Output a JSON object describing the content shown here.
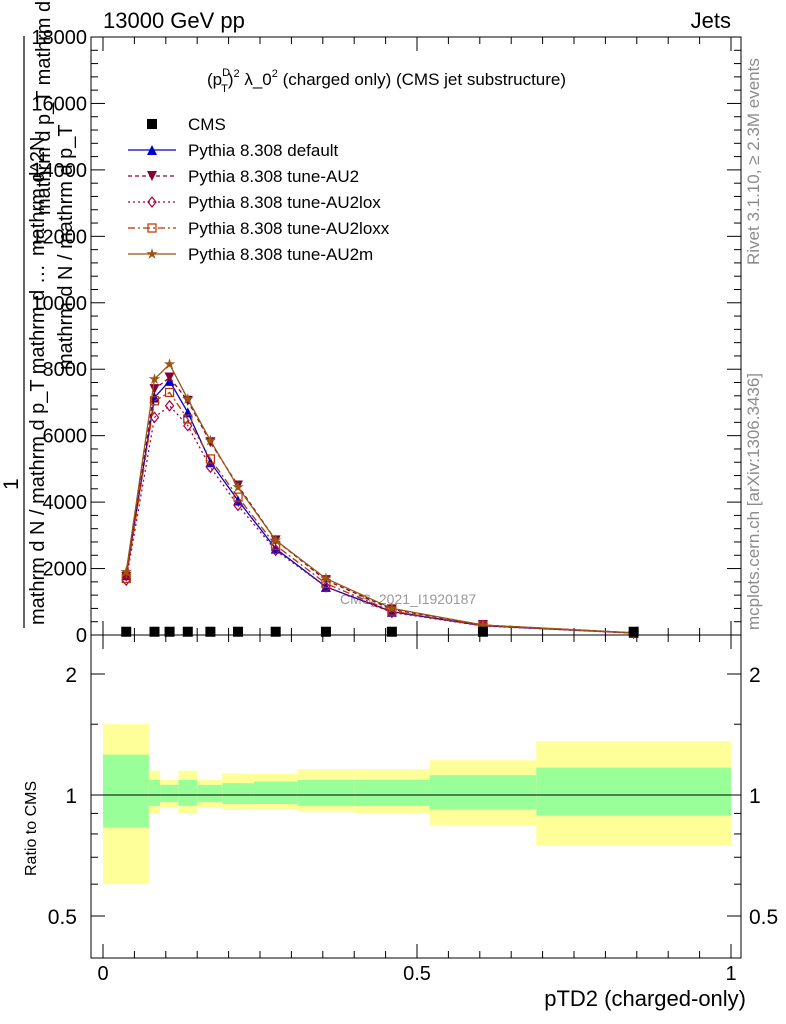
{
  "header": {
    "energy_label": "13000 GeV pp",
    "process_label": "Jets"
  },
  "side_labels": {
    "rivet": "Rivet 3.1.10, ≥ 2.3M events",
    "mcplots": "mcplots.cern.ch [arXiv:1306.3436]"
  },
  "chart_data": [
    {
      "type": "line",
      "title_parts": {
        "prefix": "(p",
        "sup1": "D",
        "sub1": "T",
        "mid": ")",
        "sup2": "2",
        "rest": " λ_0",
        "sup3": "2",
        "tail": " (charged only) (CMS jet substructure)"
      },
      "ylabel": {
        "numerator": "1",
        "denominator": "mathrm d N / mathrm d p_T mathrm d …",
        "label_line_1": "mathrm d^2N",
        "label_line_2": "mathrm d p_T mathrm d lambda",
        "label_line_3": "mathrm d N / mathrm d p_T"
      },
      "yaxis": {
        "range": [
          0,
          18000
        ],
        "ticks": [
          "0",
          "2000",
          "4000",
          "6000",
          "8000",
          "10000",
          "12000",
          "14000",
          "16000",
          "18000"
        ]
      },
      "xaxis": {
        "range": [
          0,
          1
        ]
      },
      "watermark": "CMS_2021_I1920187",
      "legend": [
        {
          "name": "CMS",
          "color": "#000000",
          "marker": "square",
          "dash": ""
        },
        {
          "name": "Pythia 8.308 default",
          "color": "#0000cc",
          "marker": "triangle-up",
          "dash": ""
        },
        {
          "name": "Pythia 8.308 tune-AU2",
          "color": "#880033",
          "marker": "triangle-down",
          "dash": "4,3"
        },
        {
          "name": "Pythia 8.308 tune-AU2lox",
          "color": "#aa0044",
          "marker": "diamond-open",
          "dash": "2,3"
        },
        {
          "name": "Pythia 8.308 tune-AU2loxx",
          "color": "#bb3300",
          "marker": "square-open",
          "dash": "7,3,2,3"
        },
        {
          "name": "Pythia 8.308 tune-AU2m",
          "color": "#995511",
          "marker": "star",
          "dash": ""
        }
      ],
      "x": [
        0.037,
        0.082,
        0.106,
        0.135,
        0.171,
        0.215,
        0.275,
        0.355,
        0.46,
        0.605,
        0.845
      ],
      "data_y": [
        8,
        8,
        8,
        8,
        8,
        8,
        8,
        8,
        8,
        8,
        8
      ],
      "series": [
        {
          "name": "Pythia 8.308 default",
          "values": [
            1800,
            7150,
            7650,
            6700,
            5200,
            4050,
            2600,
            1450,
            700,
            280,
            60
          ]
        },
        {
          "name": "Pythia 8.308 tune-AU2",
          "values": [
            1750,
            7400,
            7750,
            7050,
            5800,
            4500,
            2850,
            1650,
            770,
            300,
            65
          ]
        },
        {
          "name": "Pythia 8.308 tune-AU2lox",
          "values": [
            1650,
            6550,
            6900,
            6300,
            5050,
            3900,
            2550,
            1450,
            680,
            270,
            55
          ]
        },
        {
          "name": "Pythia 8.308 tune-AU2loxx",
          "values": [
            1700,
            7050,
            7300,
            6500,
            5300,
            4150,
            2700,
            1550,
            720,
            285,
            60
          ]
        },
        {
          "name": "Pythia 8.308 tune-AU2m",
          "values": [
            1900,
            7700,
            8150,
            7100,
            5850,
            4450,
            2850,
            1700,
            800,
            300,
            65
          ]
        }
      ]
    },
    {
      "type": "area",
      "ylabel": "Ratio to CMS",
      "xlabel": "pTD2 (charged-only)",
      "yaxis": {
        "range": [
          0.4,
          2.3
        ],
        "ticks": [
          "0.5",
          "1",
          "2"
        ]
      },
      "xaxis": {
        "range": [
          0,
          1
        ],
        "ticks": [
          "0",
          "0.5",
          "1"
        ]
      },
      "bins": [
        {
          "lo": 0.0,
          "hi": 0.073,
          "yellow": [
            0.6,
            1.5
          ],
          "green": [
            0.83,
            1.26
          ]
        },
        {
          "lo": 0.073,
          "hi": 0.091,
          "yellow": [
            0.9,
            1.15
          ],
          "green": [
            0.94,
            1.09
          ]
        },
        {
          "lo": 0.091,
          "hi": 0.12,
          "yellow": [
            0.93,
            1.09
          ],
          "green": [
            0.96,
            1.06
          ]
        },
        {
          "lo": 0.12,
          "hi": 0.15,
          "yellow": [
            0.9,
            1.15
          ],
          "green": [
            0.94,
            1.09
          ]
        },
        {
          "lo": 0.15,
          "hi": 0.19,
          "yellow": [
            0.93,
            1.09
          ],
          "green": [
            0.96,
            1.06
          ]
        },
        {
          "lo": 0.19,
          "hi": 0.24,
          "yellow": [
            0.92,
            1.13
          ],
          "green": [
            0.95,
            1.07
          ]
        },
        {
          "lo": 0.24,
          "hi": 0.31,
          "yellow": [
            0.92,
            1.13
          ],
          "green": [
            0.95,
            1.08
          ]
        },
        {
          "lo": 0.31,
          "hi": 0.4,
          "yellow": [
            0.91,
            1.16
          ],
          "green": [
            0.94,
            1.09
          ]
        },
        {
          "lo": 0.4,
          "hi": 0.52,
          "yellow": [
            0.9,
            1.16
          ],
          "green": [
            0.94,
            1.09
          ]
        },
        {
          "lo": 0.52,
          "hi": 0.69,
          "yellow": [
            0.84,
            1.22
          ],
          "green": [
            0.92,
            1.12
          ]
        },
        {
          "lo": 0.69,
          "hi": 1.0,
          "yellow": [
            0.75,
            1.36
          ],
          "green": [
            0.89,
            1.17
          ]
        }
      ]
    }
  ]
}
